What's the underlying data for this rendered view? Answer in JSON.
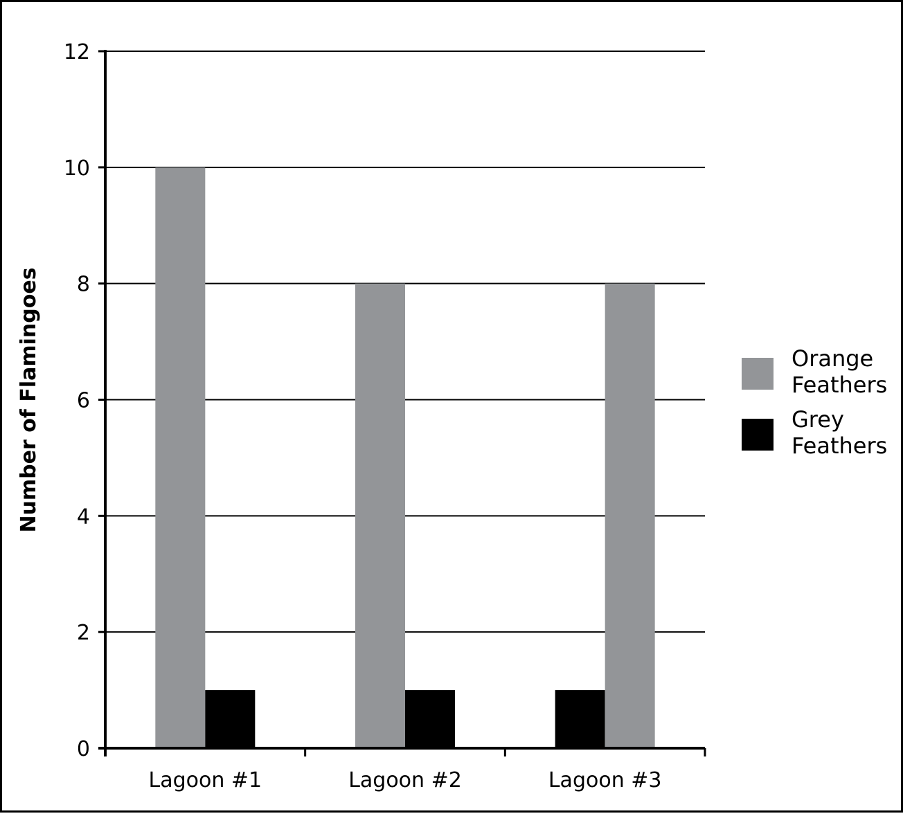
{
  "chart_data": {
    "type": "bar",
    "title": "",
    "xlabel": "",
    "ylabel": "Number of Flamingoes",
    "categories": [
      "Lagoon #1",
      "Lagoon #2",
      "Lagoon #3"
    ],
    "series": [
      {
        "name": "Orange Feathers",
        "legend_lines": [
          "Orange",
          "Feathers"
        ],
        "values": [
          10,
          8,
          8
        ],
        "color": "#939598"
      },
      {
        "name": "Grey Feathers",
        "legend_lines": [
          "Grey",
          "Feathers"
        ],
        "values": [
          1,
          1,
          1
        ],
        "color": "#000000"
      }
    ],
    "bar_order": [
      [
        "Orange Feathers",
        "Grey Feathers"
      ],
      [
        "Orange Feathers",
        "Grey Feathers"
      ],
      [
        "Grey Feathers",
        "Orange Feathers"
      ]
    ],
    "ylim": [
      0,
      12
    ],
    "yticks": [
      0,
      2,
      4,
      6,
      8,
      10,
      12
    ],
    "grid": true,
    "legend_position": "right"
  }
}
